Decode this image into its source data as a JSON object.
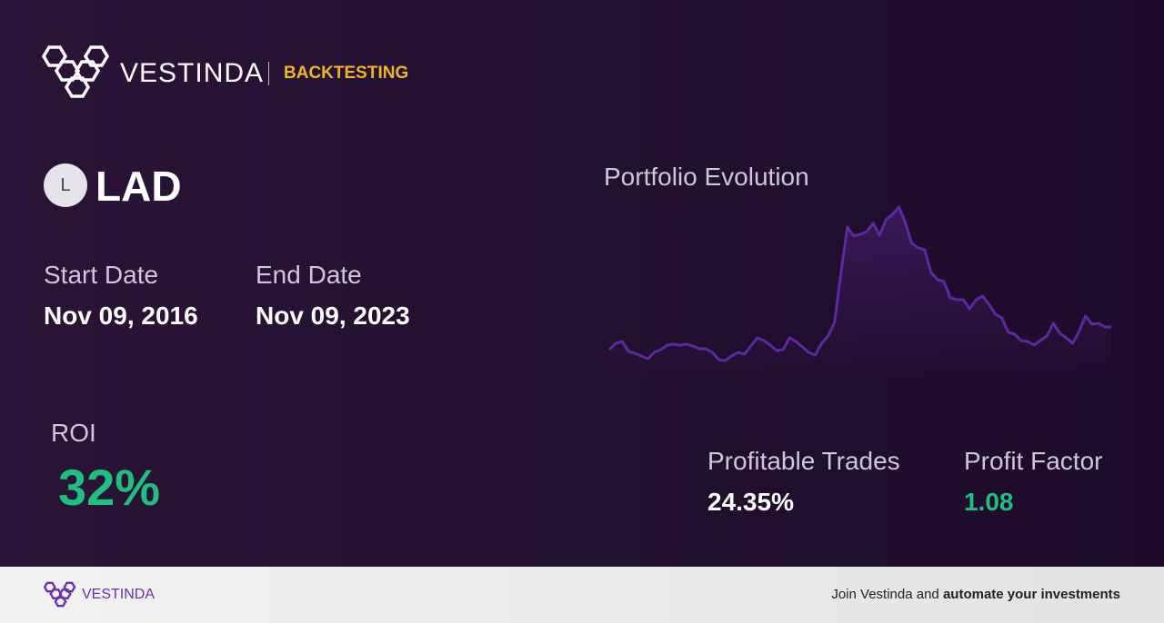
{
  "header": {
    "brand": "VESTINDA",
    "section": "BACKTESTING"
  },
  "ticker": {
    "icon": "L",
    "symbol": "LAD"
  },
  "dates": {
    "start_label": "Start Date",
    "start": "Nov 09, 2016",
    "end_label": "End Date",
    "end": "Nov 09, 2023"
  },
  "roi": {
    "label": "ROI",
    "value": "32%"
  },
  "stats": {
    "profitable_label": "Profitable Trades",
    "profitable": "24.35%",
    "factor_label": "Profit Factor",
    "factor": "1.08"
  },
  "chart_data": {
    "type": "line",
    "title": "Portfolio Evolution",
    "color": "#5b2aa0",
    "values": [
      15,
      22,
      24,
      13,
      11,
      8,
      5,
      12,
      15,
      20,
      21,
      20,
      21,
      19,
      16,
      16,
      12,
      4,
      3,
      8,
      12,
      10,
      19,
      28,
      25,
      20,
      14,
      15,
      28,
      24,
      18,
      12,
      9,
      22,
      30,
      45,
      100,
      150,
      140,
      142,
      145,
      154,
      141,
      158,
      164,
      172,
      155,
      132,
      127,
      125,
      100,
      92,
      90,
      72,
      70,
      70,
      60,
      70,
      74,
      65,
      54,
      50,
      34,
      32,
      25,
      24,
      20,
      25,
      30,
      44,
      33,
      28,
      22,
      35,
      52,
      43,
      44,
      40,
      40
    ]
  },
  "footer": {
    "brand": "VESTINDA",
    "text": "Join Vestinda and ",
    "bold": "automate your investments"
  }
}
